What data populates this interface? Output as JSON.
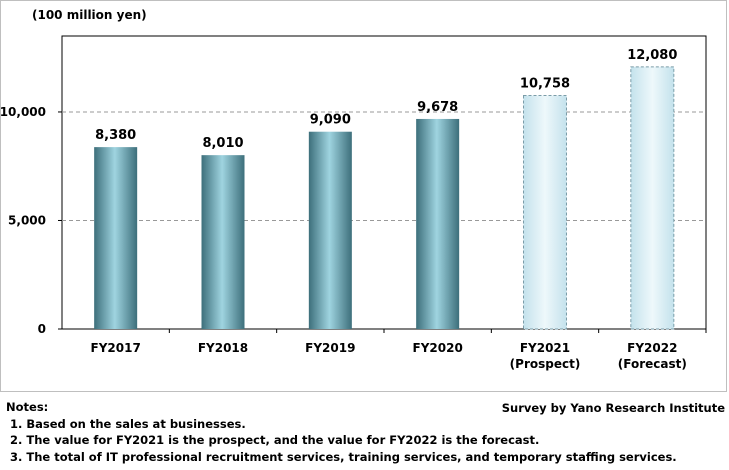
{
  "chart_data": {
    "type": "bar",
    "unit_label": "(100 million yen)",
    "categories": [
      "FY2017",
      "FY2018",
      "FY2019",
      "FY2020",
      "FY2021",
      "FY2022"
    ],
    "category_sublabels": [
      "",
      "",
      "",
      "",
      "(Prospect)",
      "(Forecast)"
    ],
    "values": [
      8380,
      8010,
      9090,
      9678,
      10758,
      12080
    ],
    "value_labels": [
      "8,380",
      "8,010",
      "9,090",
      "9,678",
      "10,758",
      "12,080"
    ],
    "bar_kind": [
      "actual",
      "actual",
      "actual",
      "actual",
      "estimate",
      "estimate"
    ],
    "y_ticks": [
      0,
      5000,
      10000
    ],
    "y_tick_labels": [
      "0",
      "5,000",
      "10,000"
    ],
    "ylim": [
      0,
      13500
    ],
    "grid": "horizontal dashed",
    "colors": {
      "actual_dark": "#3d6f7b",
      "actual_light": "#9fd4e0",
      "estimate_fill": "#d6ecf4",
      "estimate_border": "#7a9ca8",
      "grid": "#999999",
      "axis": "#000000"
    }
  },
  "notes": {
    "heading": "Notes:",
    "items": [
      "1. Based on the sales at businesses.",
      "2. The value for FY2021 is the prospect, and the value for FY2022 is the forecast.",
      "3. The total of IT professional recruitment services, training services, and temporary staffing services."
    ]
  },
  "source": "Survey by Yano Research Institute"
}
